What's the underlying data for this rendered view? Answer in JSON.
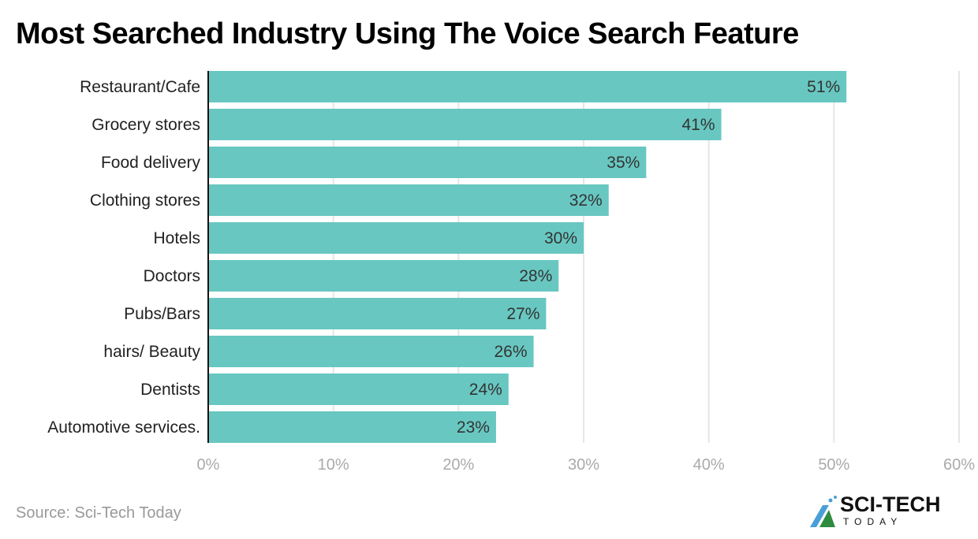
{
  "chart_data": {
    "type": "bar",
    "orientation": "horizontal",
    "title": "Most Searched Industry Using The Voice Search Feature",
    "categories": [
      "Restaurant/Cafe",
      "Grocery stores",
      "Food delivery",
      "Clothing stores",
      "Hotels",
      "Doctors",
      "Pubs/Bars",
      "hairs/ Beauty",
      "Dentists",
      "Automotive services."
    ],
    "values": [
      51,
      41,
      35,
      32,
      30,
      28,
      27,
      26,
      24,
      23
    ],
    "data_labels": [
      "51%",
      "41%",
      "35%",
      "32%",
      "30%",
      "28%",
      "27%",
      "26%",
      "24%",
      "23%"
    ],
    "xlim": [
      0,
      60
    ],
    "xticks": [
      "0%",
      "10%",
      "20%",
      "30%",
      "40%",
      "50%",
      "60%"
    ],
    "grid": true,
    "bar_color": "#68c7c1"
  },
  "source": "Source: Sci-Tech Today",
  "logo": {
    "line1": "SCI-TECH",
    "line2": "TODAY"
  }
}
